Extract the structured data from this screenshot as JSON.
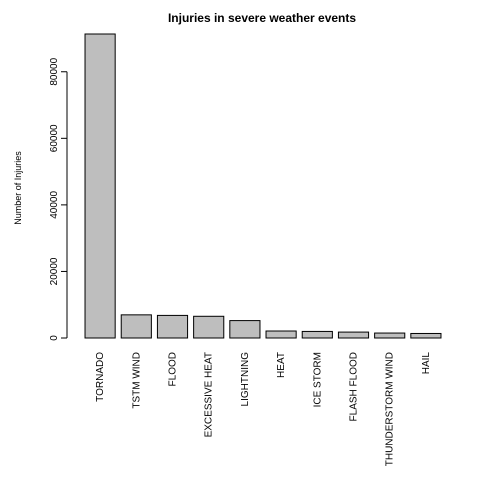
{
  "chart_data": {
    "type": "bar",
    "title": "Injuries in severe weather events",
    "xlabel": "",
    "ylabel": "Number of Injuries",
    "categories": [
      "TORNADO",
      "TSTM WIND",
      "FLOOD",
      "EXCESSIVE HEAT",
      "LIGHTNING",
      "HEAT",
      "ICE STORM",
      "FLASH FLOOD",
      "THUNDERSTORM WIND",
      "HAIL"
    ],
    "values": [
      91346,
      6957,
      6789,
      6525,
      5230,
      2100,
      1975,
      1777,
      1488,
      1361
    ],
    "ylim": [
      0,
      91346
    ],
    "yticks": [
      0,
      20000,
      40000,
      60000,
      80000
    ],
    "grid": false,
    "legend": "none",
    "colors": {
      "bar_fill": "#bebebe",
      "bar_stroke": "#000000",
      "axis": "#000000",
      "background": "#ffffff"
    }
  }
}
